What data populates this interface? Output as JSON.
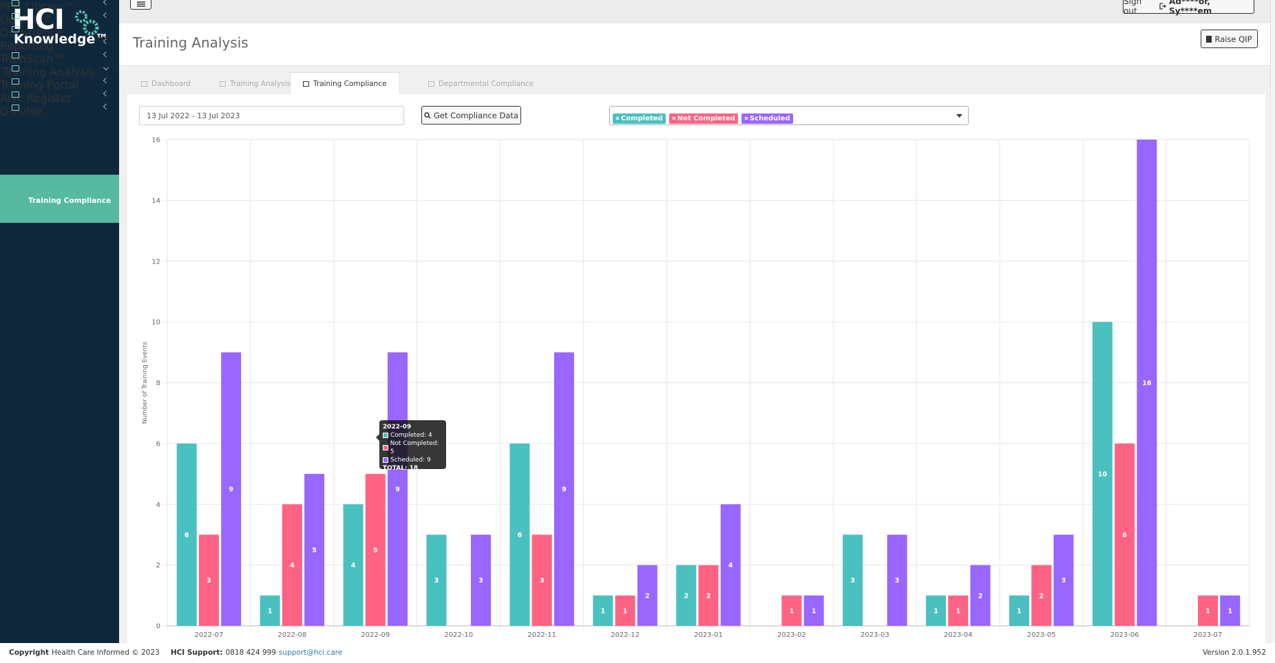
{
  "logo": {
    "line1": "HCI",
    "line2": "Knowledge™"
  },
  "topbar": {
    "sign_out": "Sign out",
    "user": "Ad****or, Sy****em"
  },
  "menu": [
    {
      "label": "PPG Library™"
    },
    {
      "label": "QualSIP™"
    },
    {
      "label": "Occurrence Reporting"
    },
    {
      "label": "TrainScan™"
    },
    {
      "label": "Training Analysis",
      "active": true,
      "submenu": [
        "Training Compliance"
      ]
    },
    {
      "label": "Training Portal"
    },
    {
      "label": "Risk Register"
    },
    {
      "label": "Q-Pulse"
    }
  ],
  "page": {
    "title": "Training Analysis",
    "button": "Raise QIP"
  },
  "tabs": [
    "Dashboard",
    "Training Analysis",
    "Training Compliance",
    "Departmental Compliance"
  ],
  "active_tab": 2,
  "filters": {
    "date_range": "13 Jul 2022 - 13 Jul 2023",
    "button": "Get Compliance Data",
    "tags": [
      "Completed",
      "Not Completed",
      "Scheduled"
    ]
  },
  "chart_data": {
    "type": "bar",
    "y_label": "Number of Training Events",
    "categories": [
      "2022-07",
      "2022-08",
      "2022-09",
      "2022-10",
      "2022-11",
      "2022-12",
      "2023-01",
      "2023-02",
      "2023-03",
      "2023-04",
      "2023-05",
      "2023-06",
      "2023-07"
    ],
    "series": [
      {
        "name": "Completed",
        "color": "#4bc0c0",
        "values": [
          6,
          1,
          4,
          3,
          6,
          1,
          2,
          0,
          3,
          1,
          1,
          10,
          0
        ]
      },
      {
        "name": "Not Completed",
        "color": "#ff6384",
        "values": [
          3,
          4,
          5,
          0,
          3,
          1,
          2,
          1,
          0,
          1,
          2,
          6,
          1
        ]
      },
      {
        "name": "Scheduled",
        "color": "#9966ff",
        "values": [
          9,
          5,
          9,
          3,
          9,
          2,
          4,
          1,
          3,
          2,
          3,
          16,
          1
        ]
      }
    ],
    "ylim": [
      0,
      16
    ],
    "yticks": [
      0,
      2,
      4,
      6,
      8,
      10,
      12,
      14,
      16
    ],
    "grid": true
  },
  "tooltip": {
    "title": "2022-09",
    "lines": [
      "Completed: 4",
      "Not Completed: 5",
      "Scheduled: 9"
    ],
    "total": "TOTAL: 18"
  },
  "footer": {
    "copyright_label": "Copyright",
    "copyright": "Health Care Informed © 2023",
    "support_label": "HCI Support:",
    "phone": "0818 424 999",
    "email": "support@hci.care",
    "version": "Version 2.0.1.952"
  }
}
